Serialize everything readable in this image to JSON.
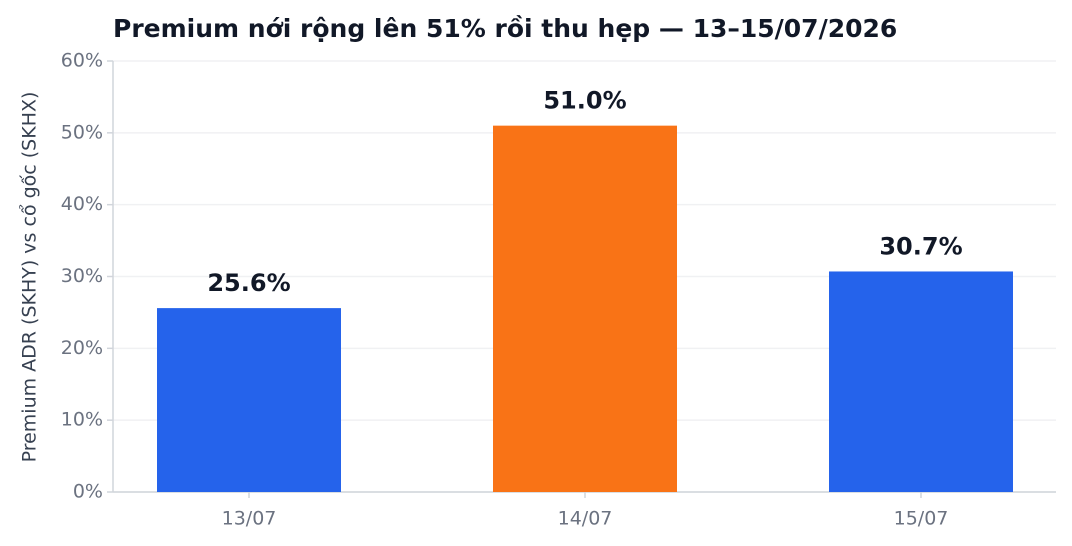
{
  "chart_data": {
    "type": "bar",
    "title": "Premium nới rộng lên 51% rồi thu hẹp — 13–15/07/2026",
    "ylabel": "Premium ADR (SKHY) vs cổ gốc (SKHX)",
    "categories": [
      "13/07",
      "14/07",
      "15/07"
    ],
    "values": [
      25.6,
      51.0,
      30.7
    ],
    "value_labels": [
      "25.6%",
      "51.0%",
      "30.7%"
    ],
    "colors": [
      "#2563eb",
      "#f97316",
      "#2563eb"
    ],
    "ylim": [
      0,
      60
    ],
    "yticks": [
      {
        "value": 0,
        "label": "0%"
      },
      {
        "value": 10,
        "label": "10%"
      },
      {
        "value": 20,
        "label": "20%"
      },
      {
        "value": 30,
        "label": "30%"
      },
      {
        "value": 40,
        "label": "40%"
      },
      {
        "value": 50,
        "label": "50%"
      },
      {
        "value": 60,
        "label": "60%"
      }
    ],
    "grid": true
  }
}
